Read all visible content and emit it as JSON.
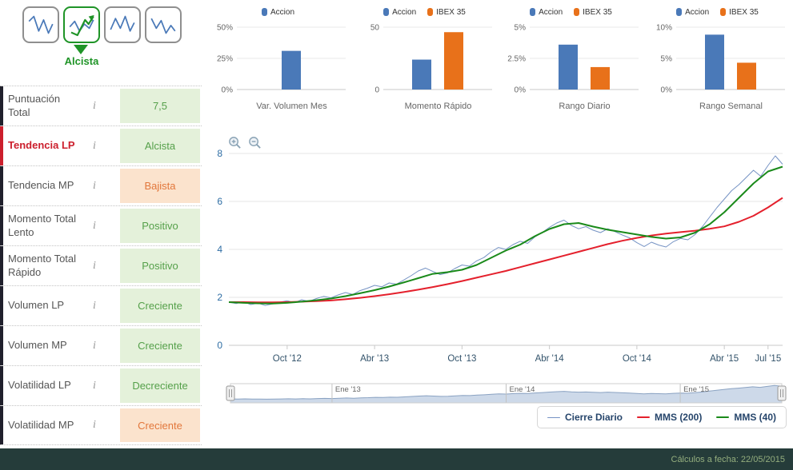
{
  "palette": {
    "accion_blue": "#4a79b8",
    "ibex_orange": "#e8711a",
    "positive_bg": "#e4f1da",
    "positive_text": "#55a04a",
    "negative_bg": "#fbe3cd",
    "negative_text": "#e2773b",
    "alert_red": "#cc1f2d",
    "close_blue": "#7693c4",
    "mms200_red": "#e4202c",
    "mms40_green": "#1a8a1a",
    "selected_green": "#1f9427"
  },
  "pattern_widget": {
    "label": "Alcista",
    "selected_index": 1,
    "thumbnails": [
      {
        "icon": "zigzag-pattern-1-icon",
        "selected": false
      },
      {
        "icon": "uptrend-arrow-pattern-icon",
        "selected": true
      },
      {
        "icon": "zigzag-pattern-3-icon",
        "selected": false
      },
      {
        "icon": "zigzag-pattern-4-icon",
        "selected": false
      }
    ]
  },
  "indicators": {
    "rows": [
      {
        "label": "Puntuación Total",
        "value": "7,5",
        "state": "positive",
        "highlight": false
      },
      {
        "label": "Tendencia LP",
        "value": "Alcista",
        "state": "positive",
        "highlight": true
      },
      {
        "label": "Tendencia MP",
        "value": "Bajista",
        "state": "negative",
        "highlight": false
      },
      {
        "label": "Momento Total Lento",
        "value": "Positivo",
        "state": "positive",
        "highlight": false
      },
      {
        "label": "Momento Total Rápido",
        "value": "Positivo",
        "state": "positive",
        "highlight": false
      },
      {
        "label": "Volumen LP",
        "value": "Creciente",
        "state": "positive",
        "highlight": false
      },
      {
        "label": "Volumen MP",
        "value": "Creciente",
        "state": "positive",
        "highlight": false
      },
      {
        "label": "Volatilidad LP",
        "value": "Decreciente",
        "state": "positive",
        "highlight": false
      },
      {
        "label": "Volatilidad MP",
        "value": "Creciente",
        "state": "negative",
        "highlight": false
      }
    ]
  },
  "chart_data": {
    "mini_charts": [
      {
        "type": "bar",
        "title": "Var. Volumen Mes",
        "ymax": 50,
        "yticks": [
          {
            "label": "50%",
            "value": 50
          },
          {
            "label": "25%",
            "value": 25
          },
          {
            "label": "0%",
            "value": 0
          }
        ],
        "series": [
          {
            "name": "Accion",
            "value": 31,
            "color": "#4a79b8"
          }
        ]
      },
      {
        "type": "bar",
        "title": "Momento Rápido",
        "ymax": 50,
        "yticks": [
          {
            "label": "50",
            "value": 50
          },
          {
            "label": "0",
            "value": 0
          }
        ],
        "series": [
          {
            "name": "Accion",
            "value": 24,
            "color": "#4a79b8"
          },
          {
            "name": "IBEX 35",
            "value": 46,
            "color": "#e8711a"
          }
        ]
      },
      {
        "type": "bar",
        "title": "Rango Diario",
        "ymax": 5,
        "yticks": [
          {
            "label": "5%",
            "value": 5
          },
          {
            "label": "2.5%",
            "value": 2.5
          },
          {
            "label": "0%",
            "value": 0
          }
        ],
        "series": [
          {
            "name": "Accion",
            "value": 3.6,
            "color": "#4a79b8"
          },
          {
            "name": "IBEX 35",
            "value": 1.8,
            "color": "#e8711a"
          }
        ]
      },
      {
        "type": "bar",
        "title": "Rango Semanal",
        "ymax": 10,
        "yticks": [
          {
            "label": "10%",
            "value": 10
          },
          {
            "label": "5%",
            "value": 5
          },
          {
            "label": "0%",
            "value": 0
          }
        ],
        "series": [
          {
            "name": "Accion",
            "value": 8.8,
            "color": "#4a79b8"
          },
          {
            "name": "IBEX 35",
            "value": 4.3,
            "color": "#e8711a"
          }
        ]
      }
    ],
    "main_chart": {
      "type": "line",
      "ylim": [
        0,
        8
      ],
      "yticks": [
        0,
        2,
        4,
        6,
        8
      ],
      "x_range_months": [
        0,
        38
      ],
      "xticks": [
        {
          "label": "Oct '12",
          "month": 4
        },
        {
          "label": "Abr '13",
          "month": 10
        },
        {
          "label": "Oct '13",
          "month": 16
        },
        {
          "label": "Abr '14",
          "month": 22
        },
        {
          "label": "Oct '14",
          "month": 28
        },
        {
          "label": "Abr '15",
          "month": 34
        },
        {
          "label": "Jul '15",
          "month": 37
        }
      ],
      "series": [
        {
          "name": "Cierre Diario",
          "color": "#7693c4",
          "line_width": 1,
          "step_months": 0.5,
          "values": [
            1.8,
            1.74,
            1.82,
            1.7,
            1.76,
            1.66,
            1.73,
            1.8,
            1.86,
            1.78,
            1.9,
            1.83,
            1.95,
            2.04,
            1.98,
            2.1,
            2.2,
            2.12,
            2.28,
            2.38,
            2.5,
            2.44,
            2.6,
            2.55,
            2.72,
            2.9,
            3.1,
            3.22,
            3.08,
            2.95,
            3.02,
            3.2,
            3.35,
            3.3,
            3.52,
            3.66,
            3.9,
            4.08,
            4.0,
            4.2,
            4.34,
            4.25,
            4.52,
            4.7,
            4.92,
            5.1,
            5.22,
            5.0,
            4.86,
            4.95,
            4.8,
            4.7,
            4.86,
            4.74,
            4.6,
            4.48,
            4.28,
            4.12,
            4.3,
            4.18,
            4.1,
            4.32,
            4.46,
            4.4,
            4.62,
            4.95,
            5.35,
            5.75,
            6.1,
            6.45,
            6.7,
            7.0,
            7.3,
            7.05,
            7.5,
            7.9,
            7.55
          ]
        },
        {
          "name": "MMS (200)",
          "color": "#e4202c",
          "line_width": 2,
          "step_months": 1,
          "values": [
            1.8,
            1.8,
            1.79,
            1.79,
            1.8,
            1.82,
            1.84,
            1.87,
            1.92,
            1.98,
            2.05,
            2.13,
            2.22,
            2.32,
            2.43,
            2.55,
            2.68,
            2.82,
            2.96,
            3.1,
            3.26,
            3.42,
            3.58,
            3.74,
            3.9,
            4.06,
            4.22,
            4.36,
            4.48,
            4.58,
            4.66,
            4.72,
            4.78,
            4.86,
            4.96,
            5.15,
            5.4,
            5.75,
            6.15
          ]
        },
        {
          "name": "MMS (40)",
          "color": "#1a8a1a",
          "line_width": 2,
          "step_months": 1,
          "values": [
            1.8,
            1.77,
            1.75,
            1.74,
            1.77,
            1.82,
            1.88,
            1.95,
            2.05,
            2.17,
            2.3,
            2.45,
            2.62,
            2.8,
            2.98,
            3.05,
            3.15,
            3.35,
            3.65,
            3.95,
            4.2,
            4.55,
            4.85,
            5.05,
            5.1,
            4.95,
            4.82,
            4.72,
            4.62,
            4.52,
            4.45,
            4.5,
            4.7,
            5.05,
            5.55,
            6.15,
            6.75,
            7.25,
            7.45
          ]
        }
      ]
    },
    "navigator": {
      "type": "area",
      "uses_series": "Cierre Diario",
      "labels": [
        {
          "label": "Ene '13",
          "month": 7
        },
        {
          "label": "Ene '14",
          "month": 19
        },
        {
          "label": "Ene '15",
          "month": 31
        }
      ]
    }
  },
  "legend": {
    "items": [
      {
        "label": "Cierre Diario",
        "color": "#7693c4",
        "line_width": 1
      },
      {
        "label": "MMS (200)",
        "color": "#e4202c",
        "line_width": 2
      },
      {
        "label": "MMS (40)",
        "color": "#1a8a1a",
        "line_width": 2
      }
    ]
  },
  "footer": {
    "text": "Cálculos a fecha: 22/05/2015"
  }
}
